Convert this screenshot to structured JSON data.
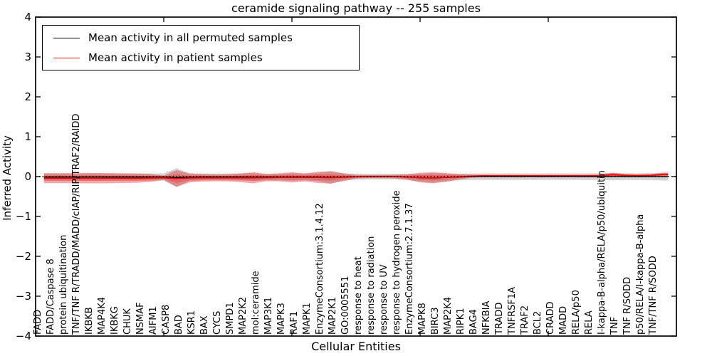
{
  "title": "ceramide signaling pathway -- 255 samples",
  "legend": {
    "items": [
      {
        "label": "Mean activity in all permuted samples",
        "color": "#000000"
      },
      {
        "label": "Mean activity in patient samples",
        "color": "#e60000"
      }
    ]
  },
  "chart_data": {
    "type": "line",
    "title": "ceramide signaling pathway -- 255 samples",
    "xlabel": "Cellular Entities",
    "ylabel": "Inferred Activity",
    "ylim": [
      -4,
      4
    ],
    "xlim": [
      0,
      50
    ],
    "ytick_values": [
      4,
      3,
      2,
      1,
      0,
      -1,
      -2,
      -3,
      -4
    ],
    "ytick_labels": [
      "4",
      "3",
      "2",
      "1",
      "0",
      "−1",
      "−2",
      "−3",
      "−4"
    ],
    "xtick_values": [
      10,
      20,
      30,
      40
    ],
    "grid": false,
    "legend_position": "upper left",
    "zero_line": 0,
    "categories": [
      "FADD",
      "FADD/Caspase 8",
      "protein ubiquitination",
      "TNF/TNF R/TRADD/MADD/cIAP/RIP/TRAF2/RAIDD",
      "IKBKB",
      "MAP4K4",
      "IKBKG",
      "CHUK",
      "NSMAF",
      "AIFM1",
      "CASP8",
      "BAD",
      "KSR1",
      "BAX",
      "CYCS",
      "SMPD1",
      "MAP2K2",
      "mol:ceramide",
      "MAP3K1",
      "MAPK3",
      "RAF1",
      "MAPK1",
      "EnzymeConsortium:3.1.4.12",
      "MAP2K1",
      "GO:0005551",
      "response to heat",
      "response to radiation",
      "response to UV",
      "response to hydrogen peroxide",
      "EnzymeConsortium:2.7.1.37",
      "MAPK8",
      "BIRC3",
      "MAP2K4",
      "RIPK1",
      "BAG4",
      "NFKBIA",
      "TRADD",
      "TNFRSF1A",
      "TRAF2",
      "BCL2",
      "CRADD",
      "MADD",
      "RELA/p50",
      "RELA",
      "I-kappa-B-alpha/RELA/p50/ubiquitin",
      "TNF",
      "TNF R/SODD",
      "p50/RELA/I-kappa-B-alpha",
      "TNF/TNF R/SODD"
    ],
    "series": [
      {
        "name": "Mean activity in all permuted samples",
        "color": "#000000",
        "band_color": "#6e6e6e",
        "band_opacity": 0.3,
        "values": [
          -0.01,
          -0.01,
          -0.01,
          -0.01,
          -0.01,
          -0.01,
          -0.01,
          -0.01,
          -0.01,
          -0.01,
          -0.025,
          -0.015,
          -0.01,
          -0.01,
          -0.01,
          -0.01,
          -0.012,
          -0.01,
          -0.01,
          -0.01,
          -0.01,
          -0.01,
          -0.018,
          -0.01,
          -0.003,
          -0.002,
          -0.002,
          -0.002,
          -0.01,
          -0.028,
          -0.035,
          -0.022,
          -0.01,
          -0.004,
          -0.002,
          -0.002,
          -0.002,
          -0.002,
          -0.002,
          -0.002,
          -0.002,
          -0.002,
          -0.002,
          -0.002,
          -0.003,
          -0.002,
          -0.002,
          -0.002,
          -0.003
        ],
        "band": [
          0.09,
          0.09,
          0.09,
          0.09,
          0.09,
          0.09,
          0.09,
          0.09,
          0.09,
          0.09,
          0.235,
          0.1,
          0.085,
          0.085,
          0.085,
          0.09,
          0.1,
          0.085,
          0.085,
          0.09,
          0.085,
          0.1,
          0.165,
          0.09,
          0.075,
          0.07,
          0.07,
          0.07,
          0.075,
          0.1,
          0.12,
          0.1,
          0.085,
          0.08,
          0.082,
          0.082,
          0.082,
          0.082,
          0.082,
          0.082,
          0.082,
          0.082,
          0.085,
          0.085,
          0.09,
          0.085,
          0.085,
          0.088,
          0.095
        ]
      },
      {
        "name": "Mean activity in patient samples",
        "color": "#e60000",
        "band_color": "#e31a1a",
        "band_opacity": 0.38,
        "values": [
          -0.04,
          -0.04,
          -0.04,
          -0.04,
          -0.04,
          -0.04,
          -0.04,
          -0.04,
          -0.035,
          -0.03,
          -0.05,
          -0.035,
          -0.03,
          -0.03,
          -0.03,
          -0.03,
          -0.03,
          -0.025,
          -0.02,
          -0.02,
          -0.02,
          -0.02,
          -0.025,
          -0.015,
          -0.005,
          0,
          0,
          0,
          -0.01,
          -0.025,
          -0.03,
          -0.02,
          -0.005,
          0.01,
          0.02,
          0.02,
          0.02,
          0.02,
          0.02,
          0.02,
          0.02,
          0.02,
          0.02,
          0.02,
          0.045,
          0.03,
          0.025,
          0.03,
          0.05
        ],
        "band": [
          0.125,
          0.125,
          0.125,
          0.13,
          0.13,
          0.125,
          0.12,
          0.115,
          0.1,
          0.055,
          0.21,
          0.11,
          0.095,
          0.085,
          0.09,
          0.11,
          0.14,
          0.09,
          0.1,
          0.13,
          0.1,
          0.14,
          0.15,
          0.1,
          0.045,
          0.04,
          0.04,
          0.045,
          0.07,
          0.12,
          0.14,
          0.11,
          0.07,
          0.04,
          0.025,
          0.022,
          0.022,
          0.022,
          0.022,
          0.022,
          0.022,
          0.025,
          0.025,
          0.03,
          0.055,
          0.032,
          0.027,
          0.03,
          0.05
        ]
      }
    ]
  }
}
